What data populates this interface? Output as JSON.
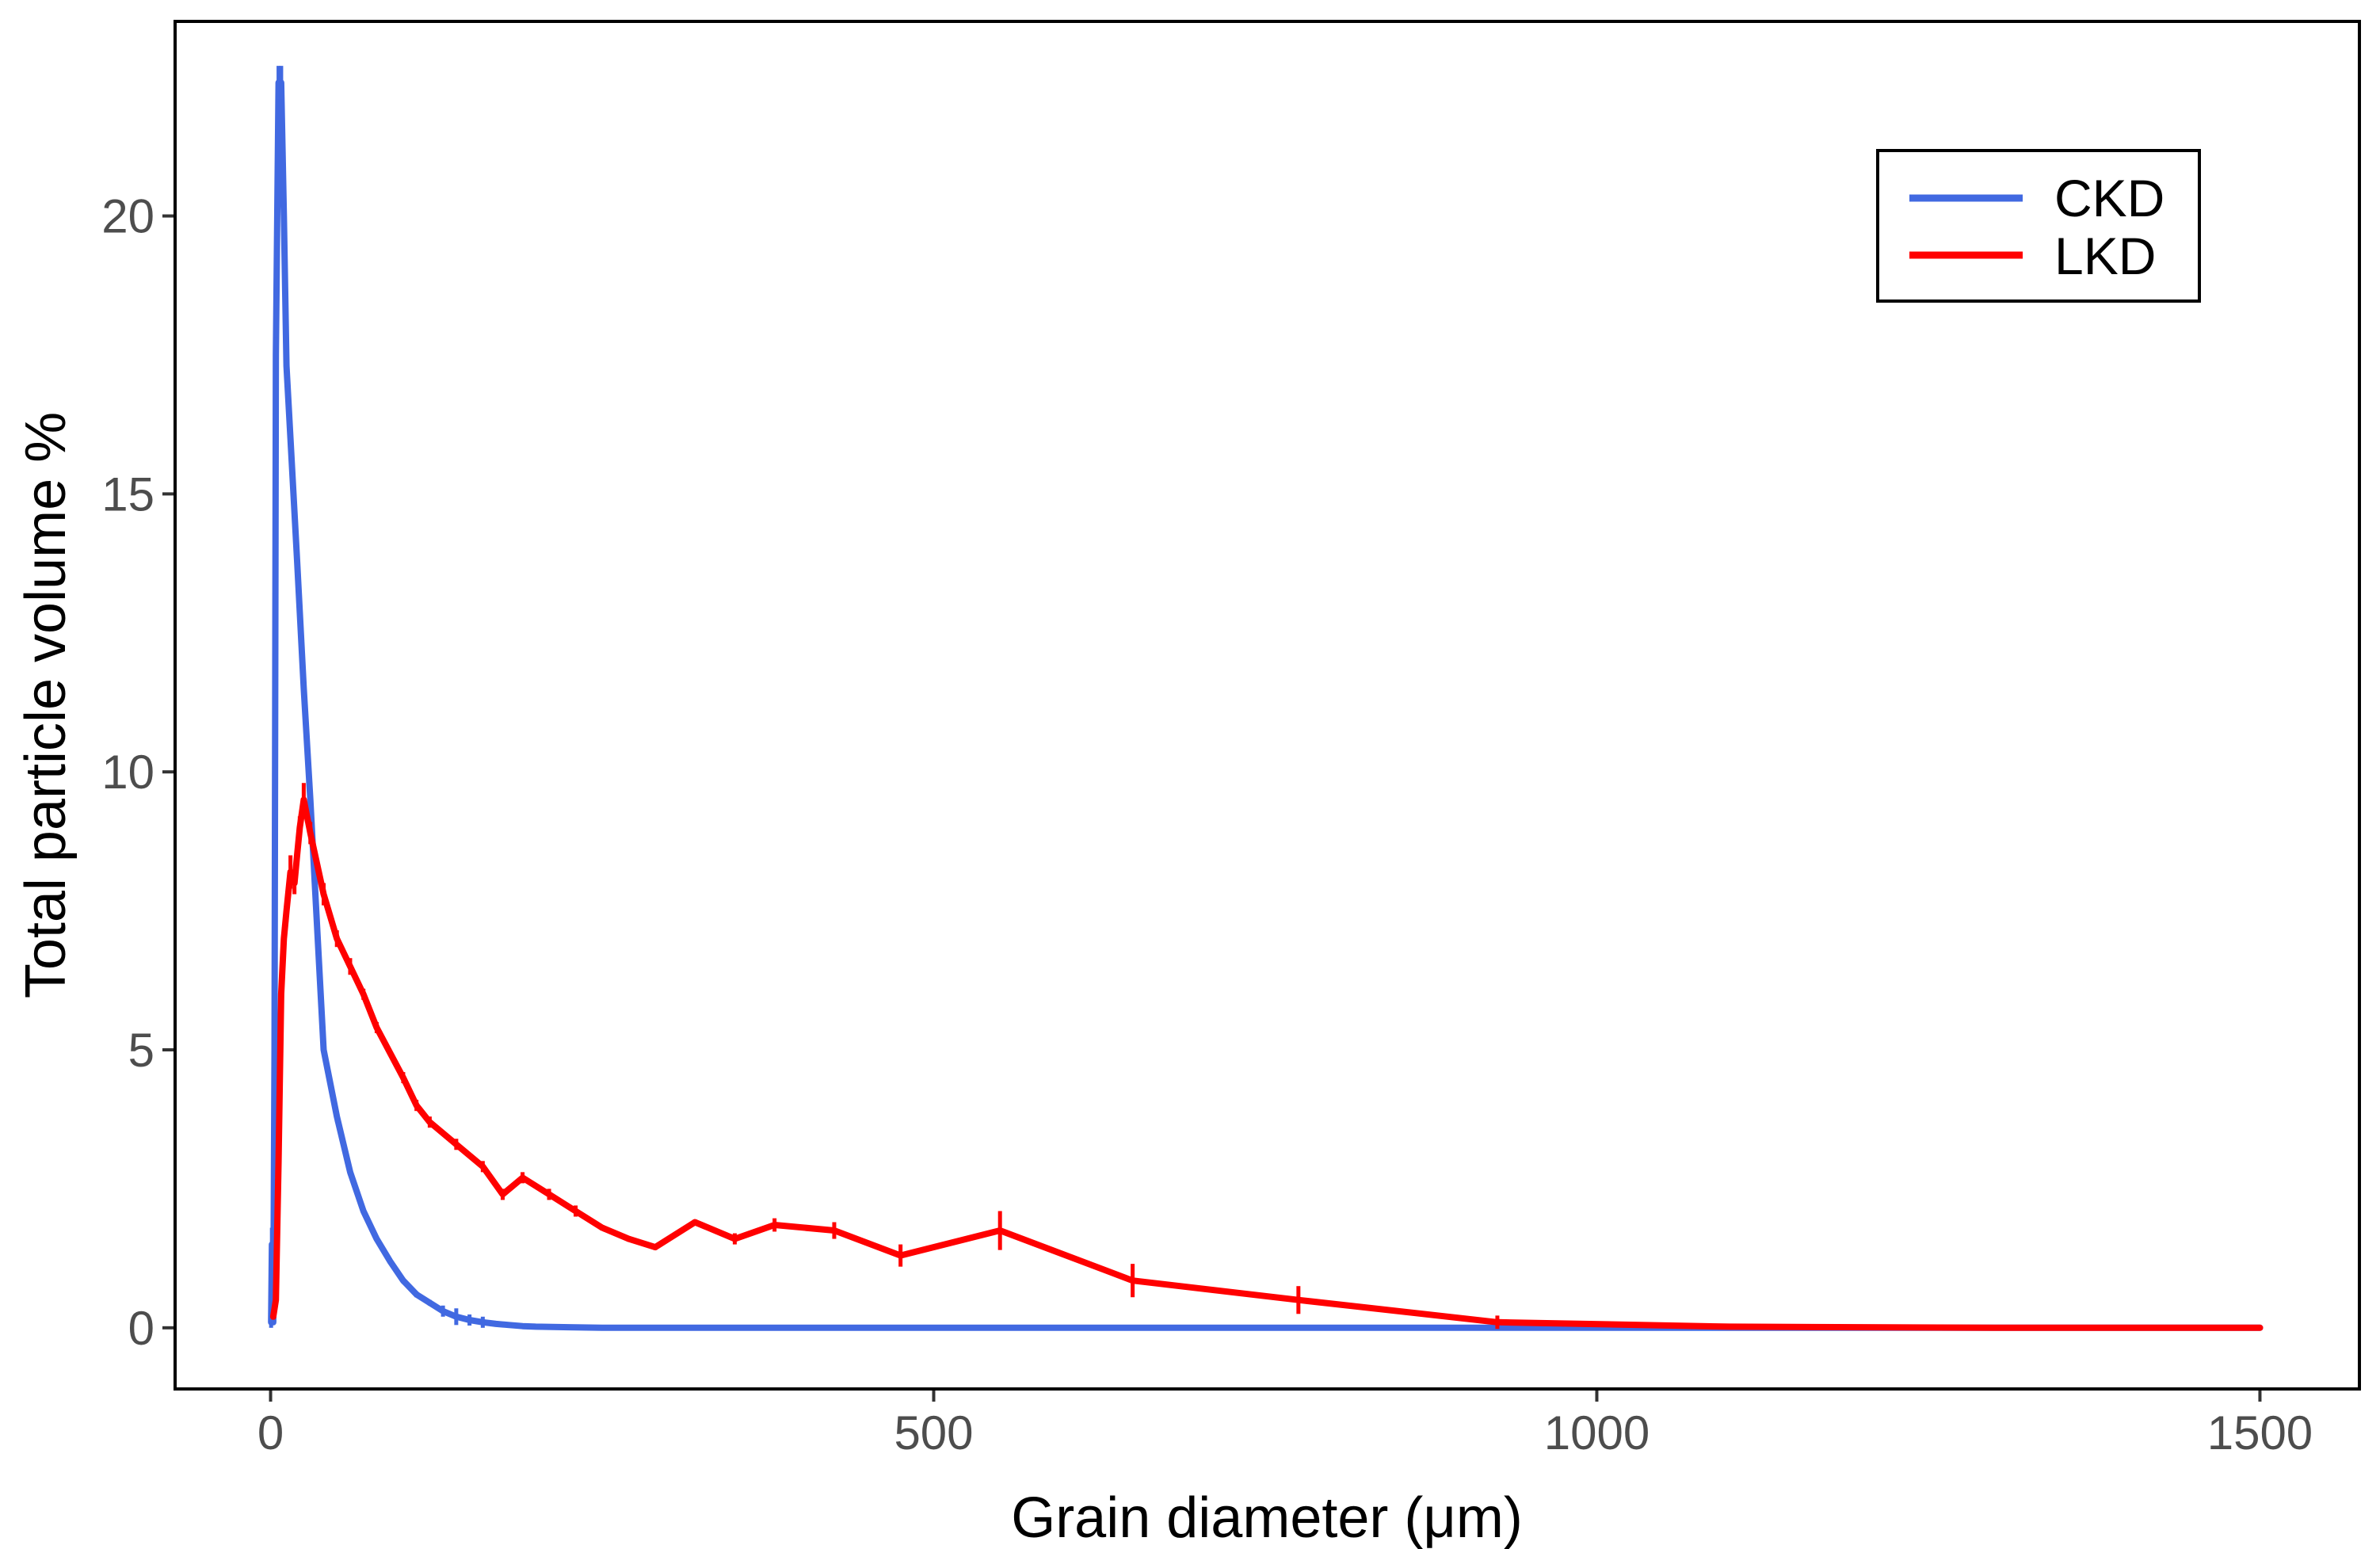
{
  "chart_data": {
    "type": "line",
    "xlabel": "Grain diameter (μm)",
    "ylabel": "Total particle volume %",
    "xlim": [
      -72,
      1575
    ],
    "ylim": [
      -1.1,
      23.5
    ],
    "x_ticks": [
      0,
      500,
      1000,
      1500
    ],
    "x_tick_labels": [
      "0",
      "500",
      "1000",
      "1500"
    ],
    "y_ticks": [
      0,
      5,
      10,
      15,
      20
    ],
    "y_tick_labels": [
      "0",
      "5",
      "10",
      "15",
      "20"
    ],
    "grid": false,
    "legend_position": "top-right",
    "series": [
      {
        "name": "CKD",
        "color": "#4169E1",
        "x": [
          0.4,
          1,
          2,
          3,
          4,
          6,
          8,
          10,
          12,
          15,
          20,
          25,
          30,
          40,
          50,
          60,
          70,
          80,
          90,
          100,
          110,
          120,
          130,
          140,
          150,
          160,
          170,
          180,
          190,
          200,
          225,
          250,
          300,
          400,
          500,
          600,
          800,
          1000,
          1200,
          1500
        ],
        "y": [
          0.1,
          1.5,
          0.1,
          5.0,
          17.5,
          22.4,
          22.4,
          20.0,
          17.3,
          16.0,
          13.8,
          11.5,
          9.5,
          5.0,
          3.8,
          2.8,
          2.1,
          1.6,
          1.2,
          0.85,
          0.6,
          0.45,
          0.3,
          0.2,
          0.14,
          0.1,
          0.07,
          0.05,
          0.03,
          0.02,
          0.01,
          0.0,
          0.0,
          0.0,
          0.0,
          0.0,
          0.0,
          0.0,
          0.0,
          0.0
        ],
        "error": [
          0.1,
          0.3,
          0.05,
          0.3,
          0.3,
          0.3,
          0.3,
          0.2,
          0.2,
          0.2,
          0.2,
          0.2,
          0.1,
          0.1,
          0.1,
          0.05,
          0.05,
          0.05,
          0.05,
          0.05,
          0.05,
          0.05,
          0.1,
          0.15,
          0.1,
          0.1,
          0.05,
          0.05,
          0.02,
          0.02,
          0.01,
          0,
          0,
          0,
          0,
          0,
          0,
          0,
          0,
          0
        ]
      },
      {
        "name": "LKD",
        "color": "#FF0000",
        "x": [
          2,
          4,
          6,
          8,
          10,
          12,
          15,
          18,
          20,
          22,
          25,
          30,
          40,
          50,
          60,
          70,
          80,
          100,
          110,
          120,
          140,
          160,
          175,
          190,
          210,
          230,
          250,
          270,
          290,
          320,
          350,
          380,
          425,
          475,
          550,
          650,
          775,
          925,
          1100,
          1300,
          1500
        ],
        "y": [
          0.2,
          0.5,
          3.0,
          6.0,
          7.0,
          7.5,
          8.2,
          8.0,
          8.5,
          9.0,
          9.5,
          8.9,
          7.8,
          7.0,
          6.5,
          6.0,
          5.4,
          4.5,
          4.0,
          3.7,
          3.3,
          2.9,
          2.4,
          2.7,
          2.4,
          2.1,
          1.8,
          1.6,
          1.45,
          1.9,
          1.6,
          1.85,
          1.75,
          1.3,
          1.75,
          0.85,
          0.5,
          0.1,
          0.02,
          0.0,
          0.0
        ],
        "error": [
          0.05,
          0.1,
          0.2,
          0.2,
          0.2,
          0.2,
          0.3,
          0.2,
          0.2,
          0.2,
          0.3,
          0.2,
          0.2,
          0.15,
          0.15,
          0.1,
          0.1,
          0.1,
          0.1,
          0.1,
          0.1,
          0.1,
          0.1,
          0.1,
          0.1,
          0.1,
          0.05,
          0.05,
          0.05,
          0.05,
          0.1,
          0.12,
          0.15,
          0.2,
          0.35,
          0.3,
          0.25,
          0.12,
          0.05,
          0.02,
          0.0
        ]
      }
    ]
  }
}
